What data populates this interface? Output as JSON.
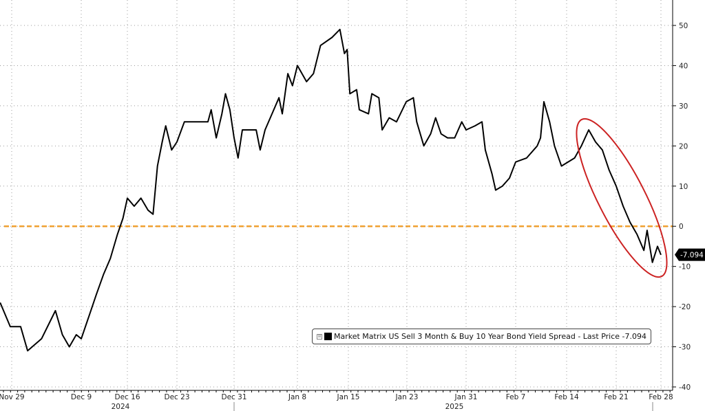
{
  "chart_data": {
    "type": "line",
    "title": "",
    "xlabel": "",
    "ylabel": "",
    "ylim": [
      -40,
      55
    ],
    "yticks": [
      50,
      40,
      30,
      20,
      10,
      0,
      -10,
      -20,
      -30,
      -40
    ],
    "xtick_labels": [
      {
        "date": "2024-11-29",
        "label": "Nov 29"
      },
      {
        "date": "2024-12-09",
        "label": "Dec 9"
      },
      {
        "date": "2024-12-16",
        "label": "Dec 16"
      },
      {
        "date": "2024-12-23",
        "label": "Dec 23"
      },
      {
        "date": "2024-12-31",
        "label": "Dec 31"
      },
      {
        "date": "2025-01-08",
        "label": "Jan 8"
      },
      {
        "date": "2025-01-15",
        "label": "Jan 15"
      },
      {
        "date": "2025-01-23",
        "label": "Jan 23"
      },
      {
        "date": "2025-01-31",
        "label": "Jan 31"
      },
      {
        "date": "2025-02-07",
        "label": "Feb 7"
      },
      {
        "date": "2025-02-14",
        "label": "Feb 14"
      },
      {
        "date": "2025-02-21",
        "label": "Feb 21"
      },
      {
        "date": "2025-02-28",
        "label": "Feb 28"
      }
    ],
    "year_labels": [
      "2024",
      "2025"
    ],
    "grid": true,
    "reference_line": {
      "value": 0,
      "color": "#f0a030",
      "style": "dashed"
    },
    "last_price_label": "-7.094",
    "legend": {
      "placement": "bottom-right",
      "text": "Market Matrix US Sell 3 Month & Buy 10 Year Bond Yield Spread - Last Price -7.094",
      "expand_glyph": "⊞"
    },
    "annotation": {
      "type": "ellipse",
      "color": "#cc2222",
      "period": [
        "2025-02-16",
        "2025-02-28"
      ]
    },
    "series": [
      {
        "color": "#000000",
        "points": [
          [
            "2024-11-27T08",
            -19
          ],
          [
            "2024-11-28T19",
            -25
          ],
          [
            "2024-11-30T07",
            -25
          ],
          [
            "2024-12-01T07",
            -31
          ],
          [
            "2024-12-03T07",
            -28
          ],
          [
            "2024-12-05T07",
            -21
          ],
          [
            "2024-12-06T07",
            -27
          ],
          [
            "2024-12-07T07",
            -30
          ],
          [
            "2024-12-08T07",
            -27
          ],
          [
            "2024-12-09T00",
            -28
          ],
          [
            "2024-12-10T06",
            -22
          ],
          [
            "2024-12-11T07",
            -17
          ],
          [
            "2024-12-12T09",
            -12
          ],
          [
            "2024-12-13T10",
            -8
          ],
          [
            "2024-12-14T12",
            -2
          ],
          [
            "2024-12-15T08",
            2
          ],
          [
            "2024-12-16T00",
            7
          ],
          [
            "2024-12-16T23",
            5
          ],
          [
            "2024-12-17T22",
            7
          ],
          [
            "2024-12-18T22",
            4
          ],
          [
            "2024-12-19T15",
            3
          ],
          [
            "2024-12-20T06",
            15
          ],
          [
            "2024-12-20T22",
            21
          ],
          [
            "2024-12-21T10",
            25
          ],
          [
            "2024-12-22T06",
            19
          ],
          [
            "2024-12-23T00",
            21
          ],
          [
            "2024-12-24T01",
            26
          ],
          [
            "2024-12-27T08",
            26
          ],
          [
            "2024-12-27T19",
            29
          ],
          [
            "2024-12-28T12",
            22
          ],
          [
            "2024-12-29T07",
            28
          ],
          [
            "2024-12-29T19",
            33
          ],
          [
            "2024-12-30T10",
            29
          ],
          [
            "2024-12-31T00",
            22
          ],
          [
            "2024-12-31T12",
            17
          ],
          [
            "2025-01-01T01",
            24
          ],
          [
            "2025-01-02T19",
            24
          ],
          [
            "2025-01-03T07",
            19
          ],
          [
            "2025-01-03T22",
            24
          ],
          [
            "2025-01-04T19",
            28
          ],
          [
            "2025-01-05T16",
            32
          ],
          [
            "2025-01-06T02",
            28
          ],
          [
            "2025-01-06T19",
            38
          ],
          [
            "2025-01-07T09",
            35
          ],
          [
            "2025-01-08T00",
            40
          ],
          [
            "2025-01-09T06",
            36
          ],
          [
            "2025-01-10T05",
            38
          ],
          [
            "2025-01-11T04",
            45
          ],
          [
            "2025-01-12T18",
            47
          ],
          [
            "2025-01-13T20",
            49
          ],
          [
            "2025-01-14T11",
            43
          ],
          [
            "2025-01-14T20",
            44
          ],
          [
            "2025-01-15T05",
            33
          ],
          [
            "2025-01-16T03",
            34
          ],
          [
            "2025-01-16T12",
            29
          ],
          [
            "2025-01-17T18",
            28
          ],
          [
            "2025-01-18T05",
            33
          ],
          [
            "2025-01-19T04",
            32
          ],
          [
            "2025-01-19T15",
            24
          ],
          [
            "2025-01-20T14",
            27
          ],
          [
            "2025-01-21T14",
            26
          ],
          [
            "2025-01-22T22",
            31
          ],
          [
            "2025-01-23T21",
            32
          ],
          [
            "2025-01-24T08",
            26
          ],
          [
            "2025-01-25T07",
            20
          ],
          [
            "2025-01-26T05",
            23
          ],
          [
            "2025-01-26T21",
            27
          ],
          [
            "2025-01-27T15",
            23
          ],
          [
            "2025-01-28T12",
            22
          ],
          [
            "2025-01-29T11",
            22
          ],
          [
            "2025-01-30T10",
            26
          ],
          [
            "2025-01-31T00",
            24
          ],
          [
            "2025-02-01T06",
            25
          ],
          [
            "2025-02-02T06",
            26
          ],
          [
            "2025-02-02T17",
            19
          ],
          [
            "2025-02-03T16",
            13
          ],
          [
            "2025-02-04T04",
            9
          ],
          [
            "2025-02-05T03",
            10
          ],
          [
            "2025-02-06T03",
            12
          ],
          [
            "2025-02-07T00",
            16
          ],
          [
            "2025-02-08T12",
            17
          ],
          [
            "2025-02-09T23",
            20
          ],
          [
            "2025-02-10T10",
            22
          ],
          [
            "2025-02-10T21",
            31
          ],
          [
            "2025-02-11T16",
            26
          ],
          [
            "2025-02-12T08",
            20
          ],
          [
            "2025-02-13T07",
            15
          ],
          [
            "2025-02-15T03",
            17
          ],
          [
            "2025-02-16T02",
            20
          ],
          [
            "2025-02-17T03",
            24
          ],
          [
            "2025-02-18T02",
            21
          ],
          [
            "2025-02-19T01",
            19
          ],
          [
            "2025-02-20T00",
            14
          ],
          [
            "2025-02-21T00",
            10
          ],
          [
            "2025-02-22T02",
            5
          ],
          [
            "2025-02-23T04",
            1
          ],
          [
            "2025-02-24T06",
            -2
          ],
          [
            "2025-02-25T08",
            -6
          ],
          [
            "2025-02-25T20",
            -1
          ],
          [
            "2025-02-26T16",
            -9
          ],
          [
            "2025-02-27T11",
            -5
          ],
          [
            "2025-02-28T00",
            -7.094
          ]
        ]
      }
    ]
  }
}
